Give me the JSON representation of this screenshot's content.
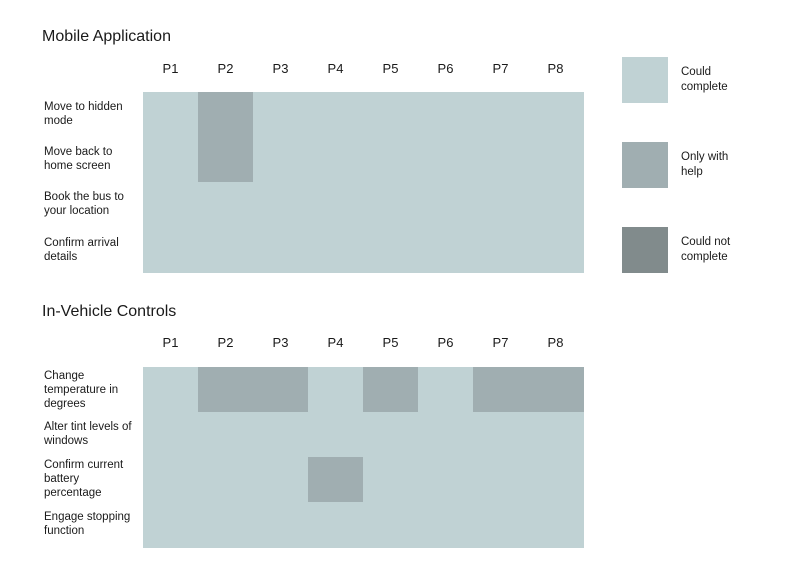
{
  "colors": {
    "could": "#c0d2d4",
    "help": "#a0aeb1",
    "cannot": "#818b8c"
  },
  "legend": [
    {
      "key": "could",
      "lines": [
        "Could",
        "complete"
      ]
    },
    {
      "key": "help",
      "lines": [
        "Only with",
        "help"
      ]
    },
    {
      "key": "cannot",
      "lines": [
        "Could not",
        "complete"
      ]
    }
  ],
  "chart_data": [
    {
      "type": "heatmap",
      "title": "Mobile Application",
      "participants": [
        "P1",
        "P2",
        "P3",
        "P4",
        "P5",
        "P6",
        "P7",
        "P8"
      ],
      "tasks": [
        {
          "lines": [
            "Move to hidden",
            "mode"
          ],
          "values": [
            "could",
            "help",
            "could",
            "could",
            "could",
            "could",
            "could",
            "could"
          ]
        },
        {
          "lines": [
            "Move back to",
            "home screen"
          ],
          "values": [
            "could",
            "help",
            "could",
            "could",
            "could",
            "could",
            "could",
            "could"
          ]
        },
        {
          "lines": [
            "Book the bus to",
            "your location"
          ],
          "values": [
            "could",
            "could",
            "could",
            "could",
            "could",
            "could",
            "could",
            "could"
          ]
        },
        {
          "lines": [
            "Confirm arrival",
            "details"
          ],
          "values": [
            "could",
            "could",
            "could",
            "could",
            "could",
            "could",
            "could",
            "could"
          ]
        }
      ]
    },
    {
      "type": "heatmap",
      "title": "In-Vehicle Controls",
      "participants": [
        "P1",
        "P2",
        "P3",
        "P4",
        "P5",
        "P6",
        "P7",
        "P8"
      ],
      "tasks": [
        {
          "lines": [
            "Change",
            "temperature in",
            "degrees"
          ],
          "values": [
            "could",
            "help",
            "help",
            "could",
            "help",
            "could",
            "help",
            "help"
          ]
        },
        {
          "lines": [
            "Alter tint levels of",
            "windows"
          ],
          "values": [
            "could",
            "could",
            "could",
            "could",
            "could",
            "could",
            "could",
            "could"
          ]
        },
        {
          "lines": [
            "Confirm current",
            "battery",
            "percentage"
          ],
          "values": [
            "could",
            "could",
            "could",
            "help",
            "could",
            "could",
            "could",
            "could"
          ]
        },
        {
          "lines": [
            "Engage stopping",
            "function"
          ],
          "values": [
            "could",
            "could",
            "could",
            "could",
            "could",
            "could",
            "could",
            "could"
          ]
        }
      ]
    }
  ]
}
